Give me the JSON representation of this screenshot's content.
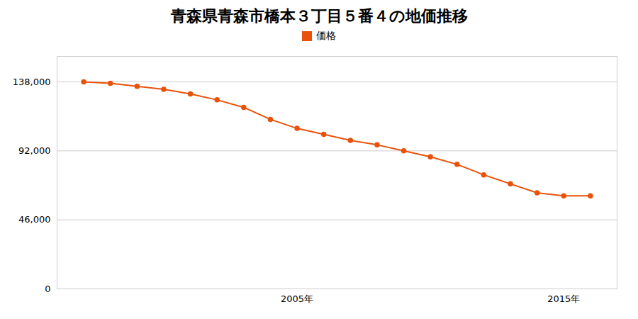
{
  "chart_data": {
    "type": "line",
    "title": "青森県青森市橋本３丁目５番４の地価推移",
    "x": [
      1997,
      1998,
      1999,
      2000,
      2001,
      2002,
      2003,
      2004,
      2005,
      2006,
      2007,
      2008,
      2009,
      2010,
      2011,
      2012,
      2013,
      2014,
      2015,
      2016
    ],
    "series": [
      {
        "name": "価格",
        "color": "#e8520a",
        "marker": "circle",
        "values": [
          138000,
          137000,
          135000,
          133000,
          130000,
          126000,
          121000,
          113000,
          107000,
          103000,
          99000,
          96000,
          92000,
          88000,
          83000,
          76000,
          70000,
          64000,
          62000,
          62000
        ]
      }
    ],
    "xlim": [
      1996,
      2017
    ],
    "xticks": [
      {
        "value": 2005,
        "label": "2005年"
      },
      {
        "value": 2015,
        "label": "2015年"
      }
    ],
    "ylim": [
      0,
      155000
    ],
    "yticks": [
      0,
      {
        "value": 46000,
        "label": "46,000"
      },
      {
        "value": 92000,
        "label": "92,000"
      },
      {
        "value": 138000,
        "label": "138,000"
      }
    ],
    "grid": true,
    "legend": "top"
  }
}
